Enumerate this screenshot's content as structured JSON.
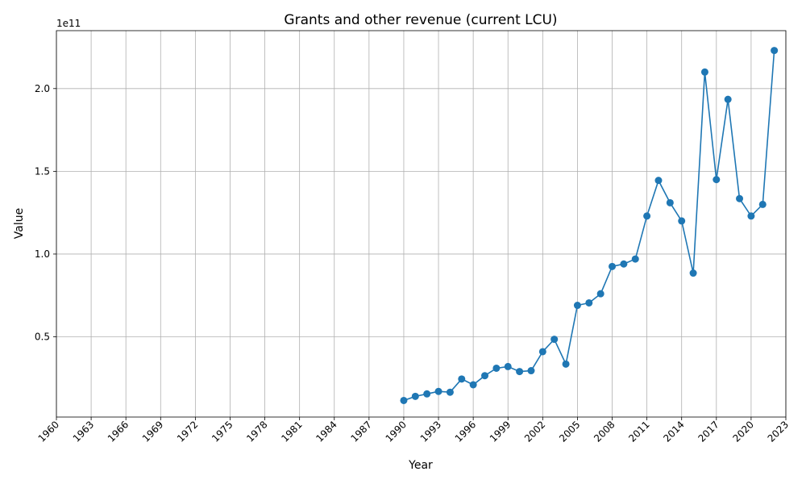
{
  "chart_data": {
    "type": "line",
    "title": "Grants and other revenue (current LCU)",
    "xlabel": "Year",
    "ylabel": "Value",
    "y_offset_label": "1e11",
    "y_scale": 100000000000.0,
    "xlim": [
      1960,
      2023
    ],
    "ylim": [
      1500000000.0,
      235000000000.0
    ],
    "x_ticks": [
      1960,
      1963,
      1966,
      1969,
      1972,
      1975,
      1978,
      1981,
      1984,
      1987,
      1990,
      1993,
      1996,
      1999,
      2002,
      2005,
      2008,
      2011,
      2014,
      2017,
      2020,
      2023
    ],
    "y_ticks": [
      50000000000.0,
      100000000000.0,
      150000000000.0,
      200000000000.0
    ],
    "y_tick_labels": [
      "0.5",
      "1.0",
      "1.5",
      "2.0"
    ],
    "grid": true,
    "line_color": "#1f77b4",
    "series": [
      {
        "x": [
          1990,
          1991,
          1992,
          1993,
          1994,
          1995,
          1996,
          1997,
          1998,
          1999,
          2000,
          2001,
          2002,
          2003,
          2004,
          2005,
          2006,
          2007,
          2008,
          2009,
          2010,
          2011,
          2012,
          2013,
          2014,
          2015,
          2016,
          2017,
          2018,
          2019,
          2020,
          2021,
          2022
        ],
        "y": [
          11500000000.0,
          14000000000.0,
          15500000000.0,
          17000000000.0,
          16500000000.0,
          24500000000.0,
          21000000000.0,
          26500000000.0,
          31000000000.0,
          32000000000.0,
          29000000000.0,
          29500000000.0,
          41000000000.0,
          48500000000.0,
          33500000000.0,
          69000000000.0,
          70500000000.0,
          76000000000.0,
          92500000000.0,
          94000000000.0,
          97000000000.0,
          123000000000.0,
          144500000000.0,
          131000000000.0,
          120000000000.0,
          88500000000.0,
          210000000000.0,
          145000000000.0,
          193500000000.0,
          133500000000.0,
          123000000000.0,
          130000000000.0,
          223000000000.0
        ]
      }
    ]
  }
}
